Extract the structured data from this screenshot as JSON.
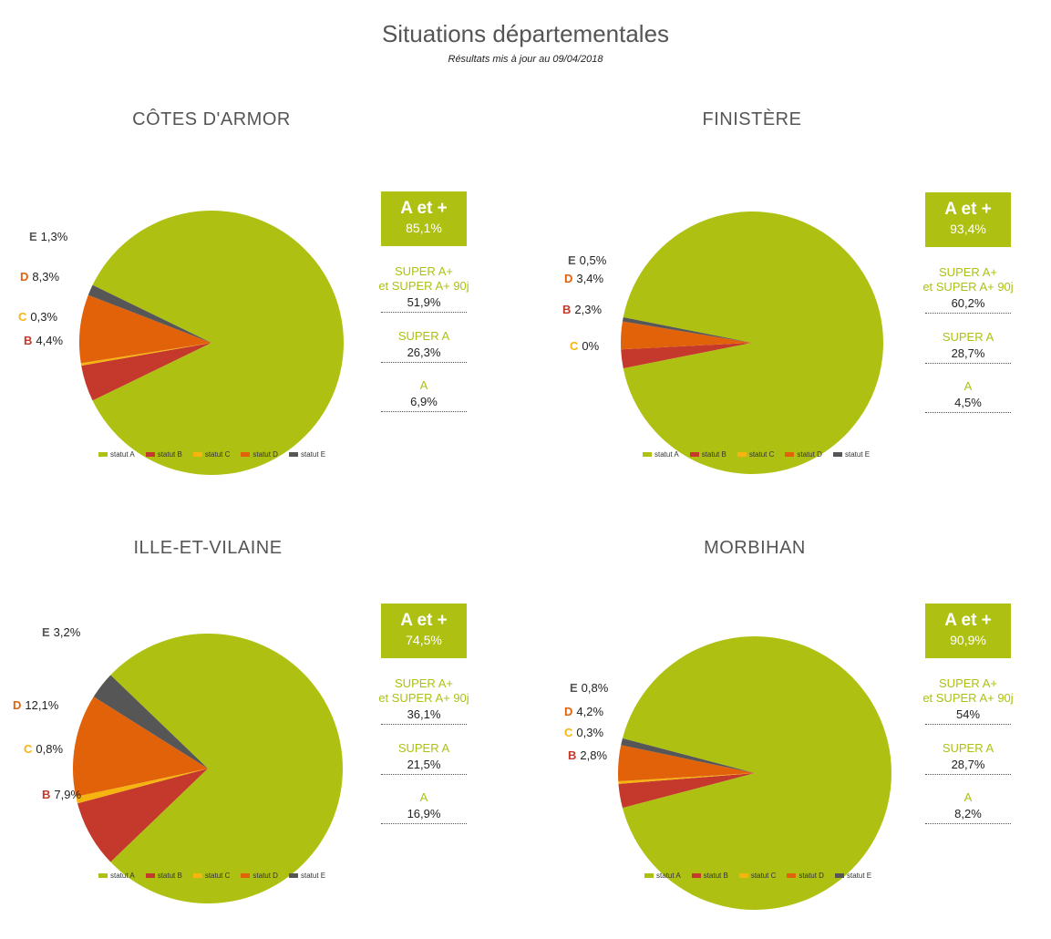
{
  "header": {
    "title": "Situations départementales",
    "subtitle": "Résultats mis à jour au 09/04/2018"
  },
  "colors": {
    "A": "#aec112",
    "B": "#c4392b",
    "C": "#f6b40f",
    "D": "#e2620a",
    "E": "#565656",
    "kpi_bg": "#aec112",
    "stat_label": "#aec112"
  },
  "chart_data": [
    {
      "type": "pie",
      "title": "CÔTES D'ARMOR",
      "categories": [
        "statut A",
        "statut B",
        "statut C",
        "statut D",
        "statut E"
      ],
      "values": [
        85.1,
        4.4,
        0.3,
        8.3,
        1.3
      ],
      "labels": [
        {
          "letter": "E",
          "text": "1,3%"
        },
        {
          "letter": "D",
          "text": "8,3%"
        },
        {
          "letter": "C",
          "text": "0,3%"
        },
        {
          "letter": "B",
          "text": "4,4%"
        }
      ],
      "kpi": {
        "label": "A et +",
        "value": "85,1%"
      },
      "stats": [
        {
          "label": "SUPER A+\net SUPER A+ 90j",
          "value": "51,9%"
        },
        {
          "label": "SUPER A",
          "value": "26,3%"
        },
        {
          "label": "A",
          "value": "6,9%"
        }
      ],
      "legend": [
        "statut A",
        "statut B",
        "statut C",
        "statut D",
        "statut E"
      ]
    },
    {
      "type": "pie",
      "title": "FINISTÈRE",
      "categories": [
        "statut A",
        "statut B",
        "statut C",
        "statut D",
        "statut E"
      ],
      "values": [
        93.4,
        2.3,
        0,
        3.4,
        0.5
      ],
      "labels": [
        {
          "letter": "E",
          "text": "0,5%"
        },
        {
          "letter": "D",
          "text": "3,4%"
        },
        {
          "letter": "B",
          "text": "2,3%"
        },
        {
          "letter": "C",
          "text": "0%"
        }
      ],
      "kpi": {
        "label": "A et +",
        "value": "93,4%"
      },
      "stats": [
        {
          "label": "SUPER A+\net SUPER A+ 90j",
          "value": "60,2%"
        },
        {
          "label": "SUPER A",
          "value": "28,7%"
        },
        {
          "label": "A",
          "value": "4,5%"
        }
      ],
      "legend": [
        "statut A",
        "statut B",
        "statut C",
        "statut D",
        "statut E"
      ]
    },
    {
      "type": "pie",
      "title": "ILLE-ET-VILAINE",
      "categories": [
        "statut A",
        "statut B",
        "statut C",
        "statut D",
        "statut E"
      ],
      "values": [
        74.5,
        7.9,
        0.8,
        12.1,
        3.2
      ],
      "labels": [
        {
          "letter": "E",
          "text": "3,2%"
        },
        {
          "letter": "D",
          "text": "12,1%"
        },
        {
          "letter": "C",
          "text": "0,8%"
        },
        {
          "letter": "B",
          "text": "7,9%"
        }
      ],
      "kpi": {
        "label": "A et +",
        "value": "74,5%"
      },
      "stats": [
        {
          "label": "SUPER A+\net SUPER A+ 90j",
          "value": "36,1%"
        },
        {
          "label": "SUPER A",
          "value": "21,5%"
        },
        {
          "label": "A",
          "value": "16,9%"
        }
      ],
      "legend": [
        "statut A",
        "statut B",
        "statut C",
        "statut D",
        "statut E"
      ]
    },
    {
      "type": "pie",
      "title": "MORBIHAN",
      "categories": [
        "statut A",
        "statut B",
        "statut C",
        "statut D",
        "statut E"
      ],
      "values": [
        90.9,
        2.8,
        0.3,
        4.2,
        0.8
      ],
      "labels": [
        {
          "letter": "E",
          "text": "0,8%"
        },
        {
          "letter": "D",
          "text": "4,2%"
        },
        {
          "letter": "C",
          "text": "0,3%"
        },
        {
          "letter": "B",
          "text": "2,8%"
        }
      ],
      "kpi": {
        "label": "A et +",
        "value": "90,9%"
      },
      "stats": [
        {
          "label": "SUPER A+\net SUPER A+ 90j",
          "value": "54%"
        },
        {
          "label": "SUPER A",
          "value": "28,7%"
        },
        {
          "label": "A",
          "value": "8,2%"
        }
      ],
      "legend": [
        "statut A",
        "statut B",
        "statut C",
        "statut D",
        "statut E"
      ]
    }
  ]
}
